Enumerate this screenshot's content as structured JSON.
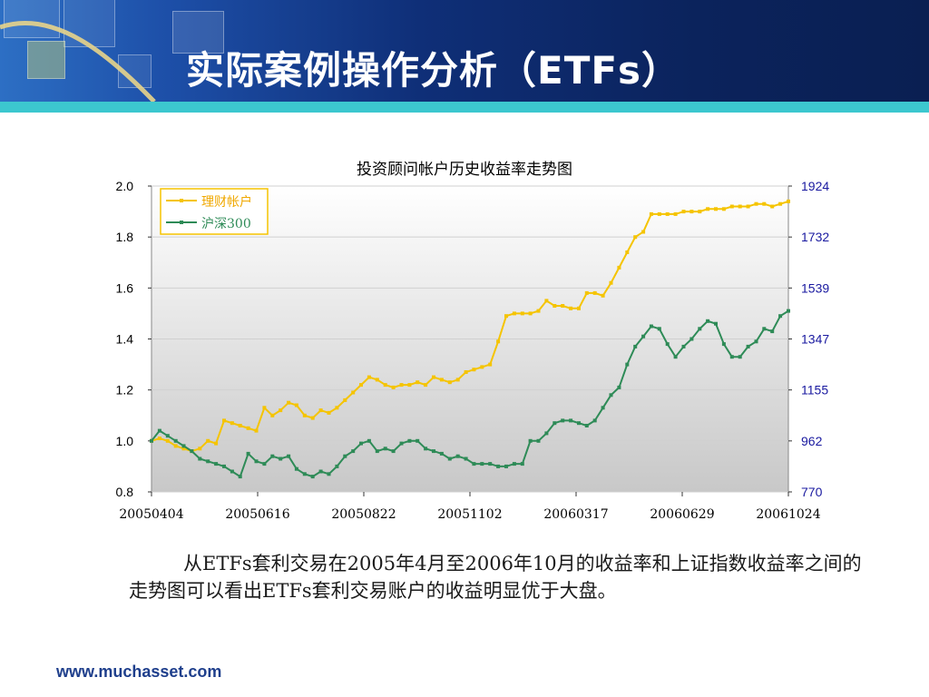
{
  "header": {
    "title": "实际案例操作分析（ETFs）"
  },
  "chart_data": {
    "type": "line",
    "title": "投资顾问帐户历史收益率走势图",
    "x_tick_labels": [
      "20050404",
      "20050616",
      "20050822",
      "20051102",
      "20060317",
      "20060629",
      "20061024"
    ],
    "y_left_ticks": [
      "2.0",
      "1.8",
      "1.6",
      "1.4",
      "1.2",
      "1.0",
      "0.8"
    ],
    "y_right_ticks": [
      "1924",
      "1732",
      "1539",
      "1347",
      "1155",
      "962",
      "770"
    ],
    "ylim_left": [
      0.8,
      2.0
    ],
    "ylim_right": [
      770,
      1924
    ],
    "grid": true,
    "legend_position": "top-left",
    "series": [
      {
        "name": "理财帐户",
        "axis": "left",
        "color": "#f5c400",
        "values": [
          1.0,
          1.01,
          1.0,
          0.98,
          0.97,
          0.96,
          0.97,
          1.0,
          0.99,
          1.08,
          1.07,
          1.06,
          1.05,
          1.04,
          1.13,
          1.1,
          1.12,
          1.15,
          1.14,
          1.1,
          1.09,
          1.12,
          1.11,
          1.13,
          1.16,
          1.19,
          1.22,
          1.25,
          1.24,
          1.22,
          1.21,
          1.22,
          1.22,
          1.23,
          1.22,
          1.25,
          1.24,
          1.23,
          1.24,
          1.27,
          1.28,
          1.29,
          1.3,
          1.39,
          1.49,
          1.5,
          1.5,
          1.5,
          1.51,
          1.55,
          1.53,
          1.53,
          1.52,
          1.52,
          1.58,
          1.58,
          1.57,
          1.62,
          1.68,
          1.74,
          1.8,
          1.82,
          1.89,
          1.89,
          1.89,
          1.89,
          1.9,
          1.9,
          1.9,
          1.91,
          1.91,
          1.91,
          1.92,
          1.92,
          1.92,
          1.93,
          1.93,
          1.92,
          1.93,
          1.94
        ]
      },
      {
        "name": "沪深300",
        "axis": "left",
        "color": "#2e8b57",
        "values": [
          1.0,
          1.04,
          1.02,
          1.0,
          0.98,
          0.96,
          0.93,
          0.92,
          0.91,
          0.9,
          0.88,
          0.86,
          0.95,
          0.92,
          0.91,
          0.94,
          0.93,
          0.94,
          0.89,
          0.87,
          0.86,
          0.88,
          0.87,
          0.9,
          0.94,
          0.96,
          0.99,
          1.0,
          0.96,
          0.97,
          0.96,
          0.99,
          1.0,
          1.0,
          0.97,
          0.96,
          0.95,
          0.93,
          0.94,
          0.93,
          0.91,
          0.91,
          0.91,
          0.9,
          0.9,
          0.91,
          0.91,
          1.0,
          1.0,
          1.03,
          1.07,
          1.08,
          1.08,
          1.07,
          1.06,
          1.08,
          1.13,
          1.18,
          1.21,
          1.3,
          1.37,
          1.41,
          1.45,
          1.44,
          1.38,
          1.33,
          1.37,
          1.4,
          1.44,
          1.47,
          1.46,
          1.38,
          1.33,
          1.33,
          1.37,
          1.39,
          1.44,
          1.43,
          1.49,
          1.51
        ]
      }
    ]
  },
  "caption": "从ETFs套利交易在2005年4月至2006年10月的收益率和上证指数收益率之间的走势图可以看出ETFs套利交易账户的收益明显优于大盘。",
  "footer": {
    "website": "www.muchasset.com"
  }
}
